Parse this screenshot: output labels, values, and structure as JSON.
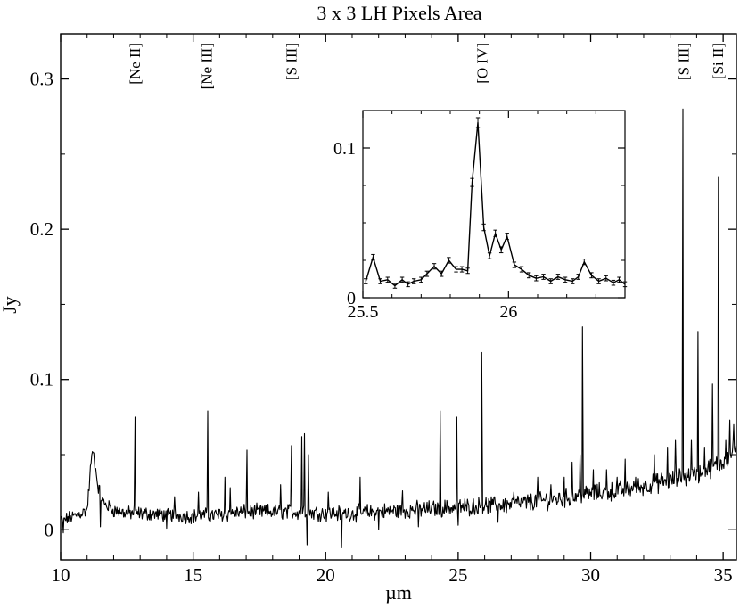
{
  "chart_data": [
    {
      "type": "line",
      "title": "3 x 3 LH Pixels Area",
      "xlabel": "µm",
      "ylabel": "Jy",
      "xlim": [
        10,
        35.5
      ],
      "ylim": [
        -0.02,
        0.33
      ],
      "xticks": [
        10,
        15,
        20,
        25,
        30,
        35
      ],
      "xtick_labels": [
        "10",
        "15",
        "20",
        "25",
        "30",
        "35"
      ],
      "yticks": [
        0,
        0.1,
        0.2,
        0.3
      ],
      "ytick_labels": [
        "0",
        "0.1",
        "0.2",
        "0.3"
      ],
      "grid": false,
      "line_labels": [
        {
          "text": "[Ne II]",
          "x": 12.8
        },
        {
          "text": "[Ne III]",
          "x": 15.5
        },
        {
          "text": "[S III]",
          "x": 18.7
        },
        {
          "text": "[O IV]",
          "x": 25.9
        },
        {
          "text": "[S III]",
          "x": 33.5
        },
        {
          "text": "[Si II]",
          "x": 34.8
        }
      ],
      "baseline": [
        [
          10.0,
          0.006
        ],
        [
          10.5,
          0.009
        ],
        [
          11.0,
          0.013
        ],
        [
          11.15,
          0.045
        ],
        [
          11.25,
          0.05
        ],
        [
          11.4,
          0.03
        ],
        [
          11.6,
          0.018
        ],
        [
          12.0,
          0.013
        ],
        [
          12.5,
          0.011
        ],
        [
          13.0,
          0.011
        ],
        [
          14.0,
          0.01
        ],
        [
          15.0,
          0.009
        ],
        [
          16.0,
          0.01
        ],
        [
          17.0,
          0.012
        ],
        [
          18.0,
          0.012
        ],
        [
          19.0,
          0.012
        ],
        [
          20.0,
          0.011
        ],
        [
          21.0,
          0.011
        ],
        [
          22.0,
          0.012
        ],
        [
          23.0,
          0.013
        ],
        [
          24.0,
          0.014
        ],
        [
          25.0,
          0.015
        ],
        [
          26.0,
          0.016
        ],
        [
          27.0,
          0.017
        ],
        [
          28.0,
          0.019
        ],
        [
          29.0,
          0.021
        ],
        [
          30.0,
          0.024
        ],
        [
          31.0,
          0.026
        ],
        [
          32.0,
          0.029
        ],
        [
          33.0,
          0.033
        ],
        [
          34.0,
          0.037
        ],
        [
          35.0,
          0.045
        ],
        [
          35.5,
          0.055
        ]
      ],
      "peaks": [
        [
          11.2,
          0.052
        ],
        [
          12.81,
          0.075
        ],
        [
          14.3,
          0.022
        ],
        [
          15.2,
          0.025
        ],
        [
          15.55,
          0.079
        ],
        [
          16.2,
          0.035
        ],
        [
          16.4,
          0.028
        ],
        [
          17.03,
          0.053
        ],
        [
          18.3,
          0.03
        ],
        [
          18.71,
          0.056
        ],
        [
          19.1,
          0.062
        ],
        [
          19.2,
          0.064
        ],
        [
          19.35,
          0.05
        ],
        [
          20.1,
          0.025
        ],
        [
          21.3,
          0.035
        ],
        [
          22.0,
          0.027
        ],
        [
          22.9,
          0.026
        ],
        [
          24.32,
          0.079
        ],
        [
          24.95,
          0.075
        ],
        [
          25.89,
          0.118
        ],
        [
          27.1,
          0.025
        ],
        [
          28.0,
          0.035
        ],
        [
          28.5,
          0.03
        ],
        [
          29.0,
          0.035
        ],
        [
          29.3,
          0.045
        ],
        [
          29.6,
          0.05
        ],
        [
          29.69,
          0.135
        ],
        [
          30.1,
          0.04
        ],
        [
          30.6,
          0.04
        ],
        [
          31.0,
          0.035
        ],
        [
          31.3,
          0.047
        ],
        [
          31.7,
          0.035
        ],
        [
          32.4,
          0.05
        ],
        [
          32.9,
          0.055
        ],
        [
          33.2,
          0.06
        ],
        [
          33.48,
          0.28
        ],
        [
          33.8,
          0.06
        ],
        [
          34.05,
          0.132
        ],
        [
          34.3,
          0.055
        ],
        [
          34.6,
          0.097
        ],
        [
          34.82,
          0.235
        ],
        [
          35.1,
          0.06
        ],
        [
          35.25,
          0.073
        ],
        [
          35.4,
          0.07
        ]
      ],
      "dips": [
        [
          10.1,
          -0.002
        ],
        [
          11.5,
          0.002
        ],
        [
          14.0,
          0.001
        ],
        [
          19.3,
          -0.01
        ],
        [
          20.6,
          -0.012
        ],
        [
          22.0,
          0.0
        ],
        [
          23.5,
          0.002
        ],
        [
          25.0,
          0.003
        ],
        [
          26.5,
          0.005
        ]
      ]
    },
    {
      "type": "line",
      "title": "",
      "xlabel": "",
      "ylabel": "",
      "xlim": [
        25.5,
        26.4
      ],
      "ylim": [
        0,
        0.125
      ],
      "xticks": [
        25.5,
        26
      ],
      "xtick_labels": [
        "25.5",
        "26"
      ],
      "yticks": [
        0,
        0.1
      ],
      "ytick_labels": [
        "0",
        "0.1"
      ],
      "error_bars": true,
      "points": [
        [
          25.51,
          0.011
        ],
        [
          25.535,
          0.027
        ],
        [
          25.56,
          0.011
        ],
        [
          25.585,
          0.012
        ],
        [
          25.61,
          0.008
        ],
        [
          25.635,
          0.012
        ],
        [
          25.655,
          0.009
        ],
        [
          25.675,
          0.011
        ],
        [
          25.7,
          0.012
        ],
        [
          25.72,
          0.016
        ],
        [
          25.745,
          0.021
        ],
        [
          25.77,
          0.016
        ],
        [
          25.795,
          0.025
        ],
        [
          25.82,
          0.019
        ],
        [
          25.84,
          0.019
        ],
        [
          25.86,
          0.018
        ],
        [
          25.875,
          0.077
        ],
        [
          25.895,
          0.117
        ],
        [
          25.915,
          0.047
        ],
        [
          25.935,
          0.028
        ],
        [
          25.955,
          0.043
        ],
        [
          25.975,
          0.032
        ],
        [
          25.995,
          0.041
        ],
        [
          26.02,
          0.022
        ],
        [
          26.045,
          0.019
        ],
        [
          26.07,
          0.015
        ],
        [
          26.095,
          0.013
        ],
        [
          26.12,
          0.014
        ],
        [
          26.145,
          0.011
        ],
        [
          26.17,
          0.014
        ],
        [
          26.195,
          0.012
        ],
        [
          26.22,
          0.011
        ],
        [
          26.24,
          0.014
        ],
        [
          26.26,
          0.024
        ],
        [
          26.285,
          0.015
        ],
        [
          26.31,
          0.011
        ],
        [
          26.335,
          0.013
        ],
        [
          26.36,
          0.01
        ],
        [
          26.38,
          0.012
        ],
        [
          26.4,
          0.009
        ]
      ]
    }
  ]
}
